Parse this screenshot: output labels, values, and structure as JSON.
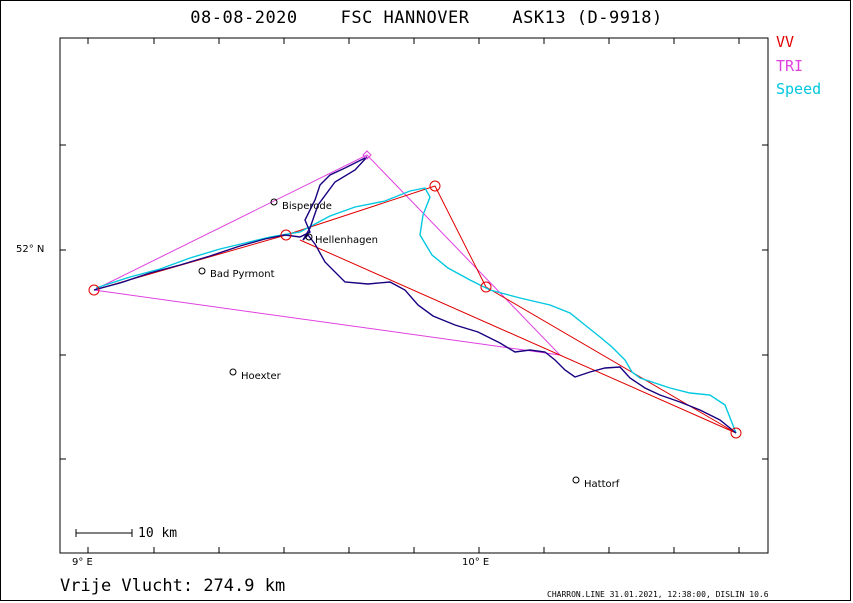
{
  "title": {
    "date": "08-08-2020",
    "club": "FSC HANNOVER",
    "aircraft": "ASK13 (D-9918)"
  },
  "legend": [
    {
      "label": "VV",
      "color": "#e00000"
    },
    {
      "label": "TRI",
      "color": "#e040e0"
    },
    {
      "label": "Speed",
      "color": "#00c8e0"
    }
  ],
  "axes": {
    "lat_label": "52° N",
    "lon_labels": [
      "9° E",
      "10° E"
    ]
  },
  "scale_bar": {
    "label": "10 km"
  },
  "places": [
    {
      "name": "Bisperode"
    },
    {
      "name": "Hellenhagen"
    },
    {
      "name": "Bad Pyrmont"
    },
    {
      "name": "Hoexter"
    },
    {
      "name": "Hattorf"
    }
  ],
  "footer": {
    "distance_label": "Vrije Vlucht:",
    "distance_value": "274.9 km",
    "credit": "CHARRON.LINE 31.01.2021, 12:38:00, DISLIN 10.6"
  },
  "colors": {
    "track": "#1a0080",
    "vv": "#e00000",
    "tri": "#e040e0",
    "speed": "#00c8e0"
  }
}
